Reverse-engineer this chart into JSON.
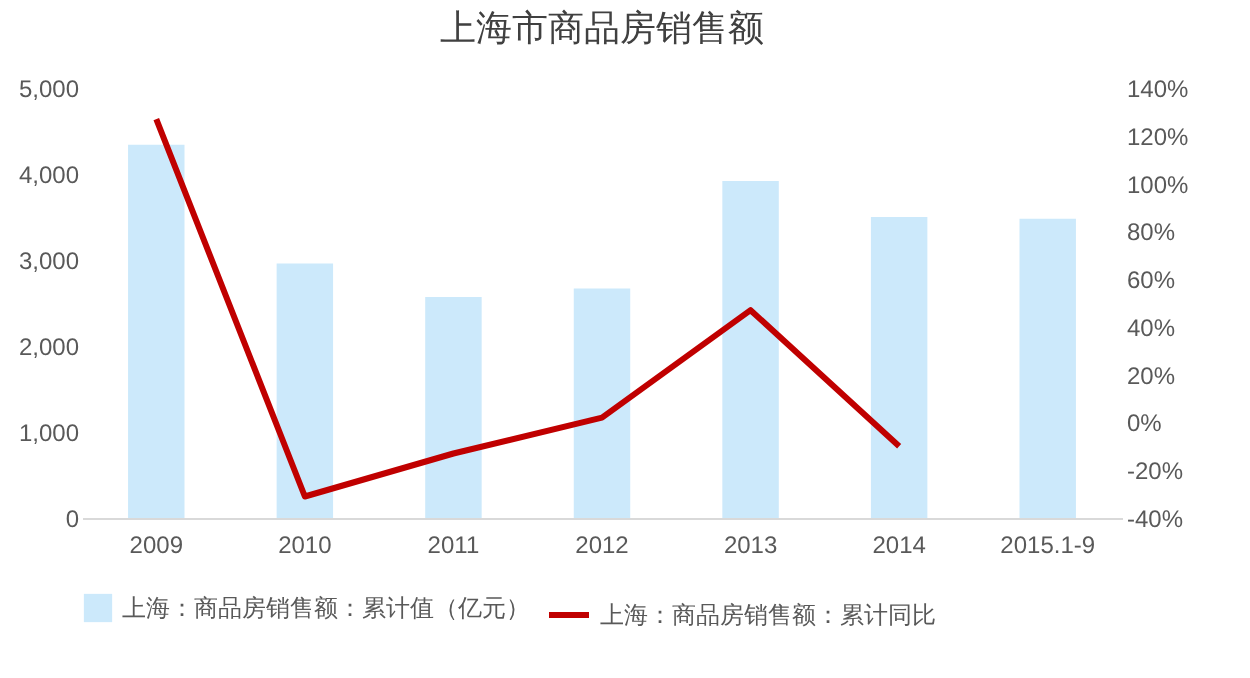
{
  "chart_data": {
    "type": "bar",
    "title": "上海市商品房销售额",
    "categories": [
      "2009",
      "2010",
      "2011",
      "2012",
      "2013",
      "2014",
      "2015.1-9"
    ],
    "series": [
      {
        "name": "上海：商品房销售额：累计值（亿元）",
        "color": "#cce9fb",
        "values": [
          4340,
          2960,
          2570,
          2670,
          3920,
          3500,
          3480
        ]
      },
      {
        "name": "上海：商品房销售额：累计同比",
        "type": "line",
        "axis": "y2",
        "color": "#c00000",
        "values": [
          127,
          -31,
          -13,
          2,
          47,
          -10,
          null
        ]
      }
    ],
    "ylim": [
      0,
      5000
    ],
    "yticks": [
      0,
      {
        "value": 1000,
        "label": "1,000"
      },
      {
        "value": 2000,
        "label": "2,000"
      },
      {
        "value": 3000,
        "label": "3,000"
      },
      {
        "value": 4000,
        "label": "4,000"
      },
      {
        "value": 5000,
        "label": "5,000"
      }
    ],
    "y2lim": [
      -40,
      140
    ],
    "y2ticks": [
      {
        "value": -40,
        "label": "-40%"
      },
      {
        "value": -20,
        "label": "-20%"
      },
      {
        "value": 0,
        "label": "0%"
      },
      {
        "value": 20,
        "label": "20%"
      },
      {
        "value": 40,
        "label": "40%"
      },
      {
        "value": 60,
        "label": "60%"
      },
      {
        "value": 80,
        "label": "80%"
      },
      {
        "value": 100,
        "label": "100%"
      },
      {
        "value": 120,
        "label": "120%"
      },
      {
        "value": 140,
        "label": "140%"
      }
    ],
    "grid": false,
    "legend": "bottom",
    "marker": "none"
  }
}
